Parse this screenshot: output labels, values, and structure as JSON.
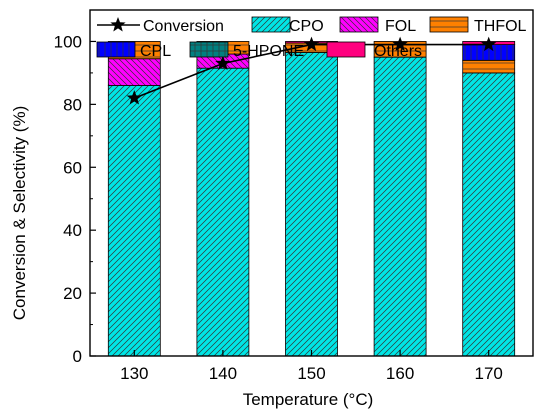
{
  "chart_data": {
    "type": "bar",
    "stacked": true,
    "categories": [
      "130",
      "140",
      "150",
      "160",
      "170"
    ],
    "xlabel": "Temperature (°C)",
    "ylabel": "Conversion & Selectivity (%)",
    "ylim": [
      0,
      110
    ],
    "yticks": [
      0,
      20,
      40,
      60,
      80,
      100
    ],
    "grid": false,
    "legend_position": "top",
    "series": [
      {
        "name": "CPO",
        "values": [
          86,
          91.5,
          96.5,
          95,
          90
        ],
        "color": "#00e5e5",
        "pattern": "diag-right"
      },
      {
        "name": "FOL",
        "values": [
          8.5,
          4.5,
          0,
          0,
          0
        ],
        "color": "#ff00ff",
        "pattern": "diag-left"
      },
      {
        "name": "THFOL",
        "values": [
          5.5,
          4,
          3,
          5,
          4
        ],
        "color": "#ff8000",
        "pattern": "horizontal"
      },
      {
        "name": "CPL",
        "values": [
          0,
          0,
          0,
          0,
          5
        ],
        "color": "#0000ff",
        "pattern": "vertical"
      },
      {
        "name": "5-HPONE",
        "values": [
          0,
          0,
          0,
          0,
          0
        ],
        "color": "#008080",
        "pattern": "cross"
      },
      {
        "name": "Others",
        "values": [
          0,
          0,
          0.5,
          0,
          1
        ],
        "color": "#ff007f",
        "pattern": "solid"
      }
    ],
    "line_series": {
      "name": "Conversion",
      "values": [
        82,
        93,
        99,
        99,
        99
      ],
      "color": "#000000",
      "marker": "star"
    }
  }
}
